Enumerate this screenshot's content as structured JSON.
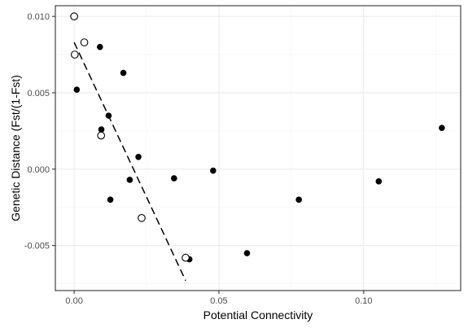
{
  "chart_data": {
    "type": "scatter",
    "title": "",
    "xlabel": "Potential Connectivity",
    "ylabel": "Genetic Distance (Fst/(1-Fst)",
    "xlim": [
      -0.0065,
      0.1335
    ],
    "ylim": [
      -0.00795,
      0.0107
    ],
    "x_ticks": [
      0.0,
      0.05,
      0.1
    ],
    "x_tick_labels": [
      "0.00",
      "0.05",
      "0.10"
    ],
    "y_ticks": [
      -0.005,
      0.0,
      0.005,
      0.01
    ],
    "y_tick_labels": [
      "-0.005",
      "0.000",
      "0.005",
      "0.010"
    ],
    "grid": true,
    "legend": "none",
    "colors": {
      "filled": "#000000",
      "open_fill": "#ffffff",
      "open_stroke": "#000000",
      "grid_major": "#ebebeb",
      "grid_minor": "#f4f4f4",
      "panel_border": "#333333"
    },
    "series": [
      {
        "marker": "filled-circle",
        "points": [
          {
            "x": 0.0009,
            "y": 0.0052
          },
          {
            "x": 0.0089,
            "y": 0.008
          },
          {
            "x": 0.0094,
            "y": 0.0026
          },
          {
            "x": 0.0119,
            "y": 0.0035
          },
          {
            "x": 0.0125,
            "y": -0.002
          },
          {
            "x": 0.017,
            "y": 0.0063
          },
          {
            "x": 0.0192,
            "y": -0.0007
          },
          {
            "x": 0.0222,
            "y": 0.0008
          },
          {
            "x": 0.0345,
            "y": -0.0006
          },
          {
            "x": 0.0398,
            "y": -0.0059
          },
          {
            "x": 0.048,
            "y": -0.0001
          },
          {
            "x": 0.0597,
            "y": -0.0055
          },
          {
            "x": 0.0776,
            "y": -0.002
          },
          {
            "x": 0.1052,
            "y": -0.0008
          },
          {
            "x": 0.127,
            "y": 0.0027
          }
        ]
      },
      {
        "marker": "open-circle",
        "points": [
          {
            "x": 0.0,
            "y": 0.01
          },
          {
            "x": 0.0002,
            "y": 0.0075
          },
          {
            "x": 0.0035,
            "y": 0.0083
          },
          {
            "x": 0.0093,
            "y": 0.0022
          },
          {
            "x": 0.0233,
            "y": -0.0032
          },
          {
            "x": 0.0385,
            "y": -0.0058
          }
        ]
      }
    ],
    "trendline": {
      "style": "dashed",
      "points": [
        {
          "x": 0.0,
          "y": 0.0083
        },
        {
          "x": 0.0385,
          "y": -0.0073
        }
      ]
    }
  }
}
